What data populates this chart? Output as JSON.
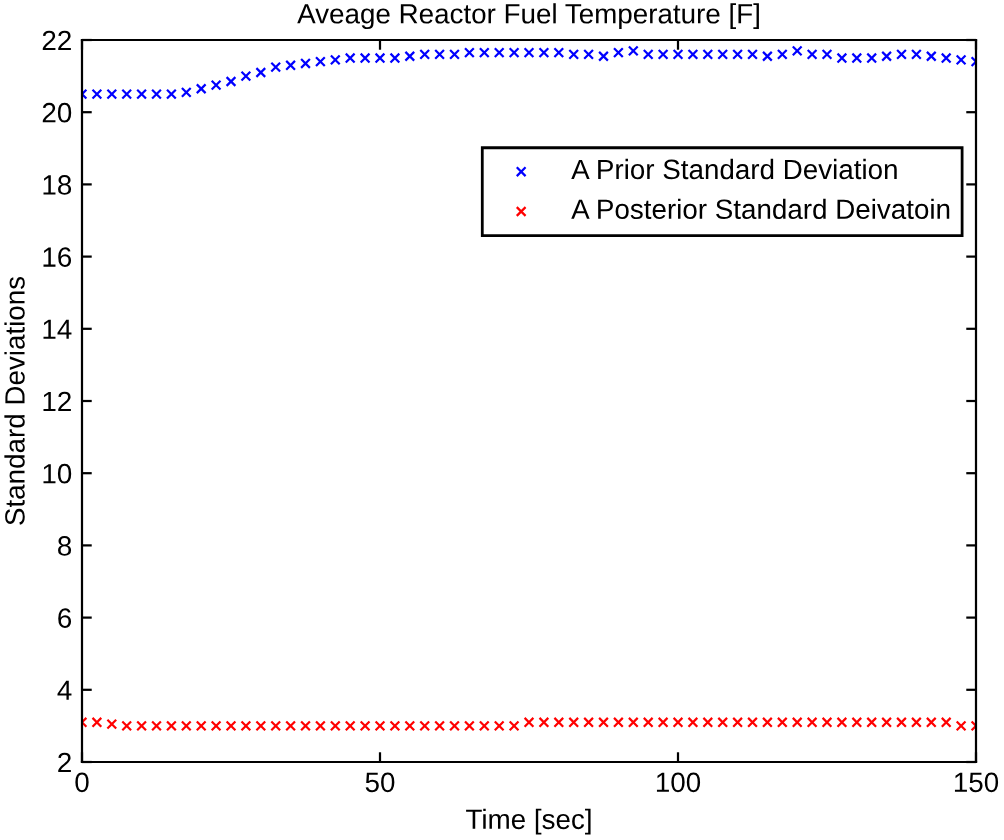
{
  "chart_data": {
    "type": "scatter",
    "title": "Aveage Reactor Fuel Temperature [F]",
    "xlabel": "Time [sec]",
    "ylabel": "Standard Deviations",
    "x": [
      0,
      2.5,
      5,
      7.5,
      10,
      12.5,
      15,
      17.5,
      20,
      22.5,
      25,
      27.5,
      30,
      32.5,
      35,
      37.5,
      40,
      42.5,
      45,
      47.5,
      50,
      52.5,
      55,
      57.5,
      60,
      62.5,
      65,
      67.5,
      70,
      72.5,
      75,
      77.5,
      80,
      82.5,
      85,
      87.5,
      90,
      92.5,
      95,
      97.5,
      100,
      102.5,
      105,
      107.5,
      110,
      112.5,
      115,
      117.5,
      120,
      122.5,
      125,
      127.5,
      130,
      132.5,
      135,
      137.5,
      140,
      142.5,
      145,
      147.5,
      150
    ],
    "series": [
      {
        "name": "A Prior Standard Deviation",
        "color": "#0000ff",
        "values": [
          20.5,
          20.5,
          20.5,
          20.5,
          20.5,
          20.5,
          20.5,
          20.55,
          20.65,
          20.75,
          20.85,
          21.0,
          21.1,
          21.25,
          21.3,
          21.35,
          21.4,
          21.45,
          21.5,
          21.5,
          21.5,
          21.5,
          21.55,
          21.6,
          21.6,
          21.6,
          21.65,
          21.65,
          21.65,
          21.65,
          21.65,
          21.65,
          21.65,
          21.6,
          21.6,
          21.55,
          21.65,
          21.7,
          21.6,
          21.6,
          21.6,
          21.6,
          21.6,
          21.6,
          21.6,
          21.6,
          21.55,
          21.6,
          21.7,
          21.6,
          21.6,
          21.5,
          21.5,
          21.5,
          21.55,
          21.6,
          21.6,
          21.55,
          21.5,
          21.45,
          21.4
        ]
      },
      {
        "name": "A Posterior Standard Deivatoin",
        "color": "#ff0000",
        "values": [
          3.1,
          3.1,
          3.05,
          3.0,
          3.0,
          3.0,
          3.0,
          3.0,
          3.0,
          3.0,
          3.0,
          3.0,
          3.0,
          3.0,
          3.0,
          3.0,
          3.0,
          3.0,
          3.0,
          3.0,
          3.0,
          3.0,
          3.0,
          3.0,
          3.0,
          3.0,
          3.0,
          3.0,
          3.0,
          3.0,
          3.1,
          3.1,
          3.1,
          3.1,
          3.1,
          3.1,
          3.1,
          3.1,
          3.1,
          3.1,
          3.1,
          3.1,
          3.1,
          3.1,
          3.1,
          3.1,
          3.1,
          3.1,
          3.1,
          3.1,
          3.1,
          3.1,
          3.1,
          3.1,
          3.1,
          3.1,
          3.1,
          3.1,
          3.1,
          3.0,
          3.0
        ]
      }
    ],
    "xlim": [
      0,
      150
    ],
    "xticks": [
      0,
      50,
      100,
      150
    ],
    "ylim": [
      2,
      22
    ],
    "yticks": [
      2,
      4,
      6,
      8,
      10,
      12,
      14,
      16,
      18,
      20,
      22
    ],
    "marker": "cross",
    "grid": false,
    "legend": "top right"
  }
}
